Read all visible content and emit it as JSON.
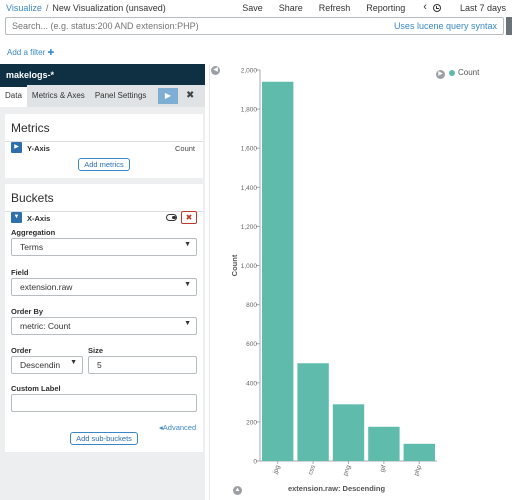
{
  "breadcrumb": {
    "root": "Visualize",
    "separator": "/",
    "current": "New Visualization (unsaved)"
  },
  "topnav": {
    "save": "Save",
    "share": "Share",
    "refresh": "Refresh",
    "reporting": "Reporting",
    "back": "‹",
    "time": "Last 7 days"
  },
  "search": {
    "placeholder": "Search... (e.g. status:200 AND extension:PHP)",
    "syntax_link": "Uses lucene query syntax"
  },
  "filter": {
    "add_label": "Add a filter ✚"
  },
  "sidebar": {
    "index_pattern": "makelogs-*",
    "tabs": [
      {
        "label": "Data"
      },
      {
        "label": "Metrics & Axes"
      },
      {
        "label": "Panel Settings"
      }
    ],
    "apply_icon": "▶",
    "discard_icon": "✖"
  },
  "metrics": {
    "title": "Metrics",
    "y_axis_label": "Y-Axis",
    "y_axis_value": "Count",
    "add_button": "Add metrics"
  },
  "buckets": {
    "title": "Buckets",
    "x_axis_label": "X-Axis",
    "aggregation_label": "Aggregation",
    "aggregation_value": "Terms",
    "field_label": "Field",
    "field_value": "extension.raw",
    "order_by_label": "Order By",
    "order_by_value": "metric: Count",
    "order_label": "Order",
    "order_value": "Descendin",
    "size_label": "Size",
    "size_value": "5",
    "custom_label": "Custom Label",
    "custom_value": "",
    "advanced_link": "◂Advanced",
    "add_sub_buckets": "Add sub-buckets"
  },
  "chart_data": {
    "type": "bar",
    "categories": [
      "jpg",
      "css",
      "png",
      "gif",
      "php"
    ],
    "values": [
      1940,
      500,
      290,
      175,
      88
    ],
    "ylim": [
      0,
      2000
    ],
    "yticks": [
      0,
      200,
      400,
      600,
      800,
      1000,
      1200,
      1400,
      1600,
      1800,
      2000
    ],
    "ytick_labels": [
      "0",
      "200",
      "400",
      "600",
      "800",
      "1,000",
      "1,200",
      "1,400",
      "1,600",
      "1,800",
      "2,000"
    ],
    "ylabel": "Count",
    "xlabel": "extension.raw: Descending",
    "legend": [
      "Count"
    ],
    "legend_position": "top-right",
    "bar_color": "#5fbcac",
    "grid": false
  }
}
